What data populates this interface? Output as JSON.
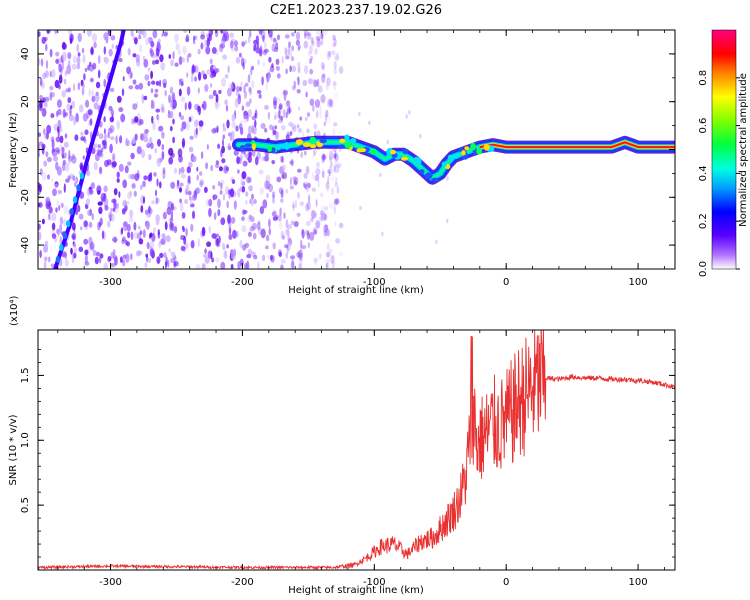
{
  "chart_data": [
    {
      "type": "heatmap",
      "title": "C2E1.2023.237.19.02.G26",
      "xlabel": "Height of straight line (km)",
      "ylabel": "Frequency (Hz)",
      "xlim": [
        -355,
        128
      ],
      "ylim": [
        -50,
        50
      ],
      "xticks": [
        -300,
        -200,
        -100,
        0,
        100
      ],
      "xtick_labels": [
        "-300",
        "-200",
        "-100",
        "0",
        "100"
      ],
      "yticks": [
        -40,
        -20,
        0,
        20,
        40
      ],
      "ytick_labels": [
        "-40",
        "-20",
        "0",
        "20",
        "40"
      ],
      "colorbar": {
        "label": "Normalized spectral amplitude",
        "range": [
          0.0,
          1.0
        ],
        "ticks": [
          0.0,
          0.2,
          0.4,
          0.6,
          0.8
        ],
        "tick_labels": [
          "0.0",
          "0.2",
          "0.4",
          "0.6",
          "0.8"
        ]
      },
      "noise_region_x": [
        -355,
        -125
      ],
      "main_trace": [
        {
          "x": -203,
          "y": 2
        },
        {
          "x": -190,
          "y": 2
        },
        {
          "x": -175,
          "y": 1
        },
        {
          "x": -160,
          "y": 2
        },
        {
          "x": -145,
          "y": 3
        },
        {
          "x": -130,
          "y": 3
        },
        {
          "x": -120,
          "y": 3
        },
        {
          "x": -110,
          "y": 1
        },
        {
          "x": -100,
          "y": -1
        },
        {
          "x": -92,
          "y": -4
        },
        {
          "x": -85,
          "y": -2
        },
        {
          "x": -78,
          "y": -2
        },
        {
          "x": -70,
          "y": -5
        },
        {
          "x": -62,
          "y": -9
        },
        {
          "x": -56,
          "y": -12
        },
        {
          "x": -50,
          "y": -10
        },
        {
          "x": -45,
          "y": -6
        },
        {
          "x": -40,
          "y": -3
        },
        {
          "x": -30,
          "y": -1
        },
        {
          "x": -20,
          "y": 1
        },
        {
          "x": -10,
          "y": 2
        },
        {
          "x": 0,
          "y": 1
        },
        {
          "x": 20,
          "y": 1
        },
        {
          "x": 40,
          "y": 1
        },
        {
          "x": 60,
          "y": 1
        },
        {
          "x": 80,
          "y": 1
        },
        {
          "x": 90,
          "y": 3
        },
        {
          "x": 100,
          "y": 1
        },
        {
          "x": 128,
          "y": 1
        }
      ],
      "diagonal_trace": [
        {
          "x": -342,
          "y": -50
        },
        {
          "x": -330,
          "y": -30
        },
        {
          "x": -318,
          "y": -5
        },
        {
          "x": -305,
          "y": 20
        },
        {
          "x": -292,
          "y": 45
        },
        {
          "x": -290,
          "y": 50
        }
      ]
    },
    {
      "type": "line",
      "xlabel": "Height of straight line (km)",
      "ylabel": "SNR (10 * v/v)",
      "y_multiplier": "(x10⁴)",
      "xlim": [
        -355,
        128
      ],
      "ylim": [
        0,
        1.85
      ],
      "xticks": [
        -300,
        -200,
        -100,
        0,
        100
      ],
      "xtick_labels": [
        "-300",
        "-200",
        "-100",
        "0",
        "100"
      ],
      "yticks": [
        0.5,
        1.0,
        1.5
      ],
      "ytick_labels": [
        "0.5",
        "1.0",
        "1.5"
      ],
      "series": [
        {
          "color": "#e83030",
          "x": [
            -355,
            -300,
            -200,
            -130,
            -115,
            -105,
            -95,
            -85,
            -75,
            -65,
            -55,
            -45,
            -40,
            -35,
            -30,
            -27,
            -25,
            -22,
            -20,
            -15,
            -10,
            -5,
            0,
            5,
            10,
            15,
            20,
            25,
            30,
            40,
            50,
            60,
            70,
            80,
            90,
            100,
            110,
            120,
            128
          ],
          "y": [
            0.02,
            0.03,
            0.02,
            0.02,
            0.04,
            0.1,
            0.18,
            0.2,
            0.12,
            0.22,
            0.25,
            0.38,
            0.45,
            0.55,
            0.75,
            1.1,
            1.25,
            0.95,
            1.0,
            1.05,
            1.12,
            1.1,
            1.15,
            1.22,
            1.3,
            1.35,
            1.4,
            1.45,
            1.48,
            1.47,
            1.49,
            1.48,
            1.48,
            1.47,
            1.47,
            1.46,
            1.45,
            1.43,
            1.41
          ]
        }
      ]
    }
  ]
}
